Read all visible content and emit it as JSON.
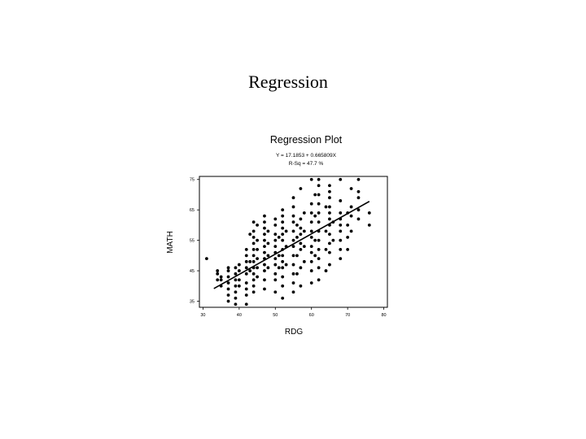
{
  "slide": {
    "title": "Regression"
  },
  "chart_data": {
    "type": "scatter",
    "title": "Regression Plot",
    "subtitle": [
      "Y = 17.1853 + 0.665809X",
      "R-Sq = 47.7 %"
    ],
    "xlabel": "RDG",
    "ylabel": "MATH",
    "xlim": [
      29,
      81
    ],
    "ylim": [
      33,
      76
    ],
    "xticks": [
      30,
      40,
      50,
      60,
      70,
      80
    ],
    "yticks": [
      35,
      45,
      55,
      65,
      75
    ],
    "grid": false,
    "regression_line": {
      "intercept": 17.1853,
      "slope": 0.665809,
      "x_range": [
        33,
        76
      ]
    },
    "points": [
      [
        31,
        49
      ],
      [
        34,
        42
      ],
      [
        34,
        44
      ],
      [
        34,
        45
      ],
      [
        35,
        40
      ],
      [
        35,
        42
      ],
      [
        35,
        43
      ],
      [
        37,
        35
      ],
      [
        37,
        37
      ],
      [
        37,
        39
      ],
      [
        37,
        41
      ],
      [
        37,
        43
      ],
      [
        37,
        45
      ],
      [
        37,
        46
      ],
      [
        39,
        34
      ],
      [
        39,
        36
      ],
      [
        39,
        38
      ],
      [
        39,
        40
      ],
      [
        39,
        42
      ],
      [
        39,
        44
      ],
      [
        39,
        46
      ],
      [
        40,
        40
      ],
      [
        40,
        42
      ],
      [
        40,
        45
      ],
      [
        40,
        47
      ],
      [
        42,
        34
      ],
      [
        42,
        37
      ],
      [
        42,
        39
      ],
      [
        42,
        41
      ],
      [
        42,
        44
      ],
      [
        42,
        46
      ],
      [
        42,
        48
      ],
      [
        42,
        50
      ],
      [
        42,
        52
      ],
      [
        43,
        45
      ],
      [
        43,
        48
      ],
      [
        43,
        57
      ],
      [
        44,
        38
      ],
      [
        44,
        40
      ],
      [
        44,
        42
      ],
      [
        44,
        44
      ],
      [
        44,
        46
      ],
      [
        44,
        48
      ],
      [
        44,
        50
      ],
      [
        44,
        52
      ],
      [
        44,
        54
      ],
      [
        44,
        56
      ],
      [
        44,
        58
      ],
      [
        44,
        61
      ],
      [
        45,
        43
      ],
      [
        45,
        46
      ],
      [
        45,
        49
      ],
      [
        45,
        52
      ],
      [
        45,
        55
      ],
      [
        45,
        60
      ],
      [
        47,
        39
      ],
      [
        47,
        42
      ],
      [
        47,
        45
      ],
      [
        47,
        47
      ],
      [
        47,
        49
      ],
      [
        47,
        51
      ],
      [
        47,
        53
      ],
      [
        47,
        55
      ],
      [
        47,
        57
      ],
      [
        47,
        59
      ],
      [
        47,
        61
      ],
      [
        47,
        63
      ],
      [
        48,
        46
      ],
      [
        48,
        50
      ],
      [
        48,
        54
      ],
      [
        48,
        58
      ],
      [
        50,
        38
      ],
      [
        50,
        42
      ],
      [
        50,
        44
      ],
      [
        50,
        47
      ],
      [
        50,
        49
      ],
      [
        50,
        51
      ],
      [
        50,
        53
      ],
      [
        50,
        55
      ],
      [
        50,
        57
      ],
      [
        50,
        60
      ],
      [
        50,
        62
      ],
      [
        51,
        46
      ],
      [
        51,
        50
      ],
      [
        51,
        56
      ],
      [
        52,
        36
      ],
      [
        52,
        40
      ],
      [
        52,
        43
      ],
      [
        52,
        46
      ],
      [
        52,
        48
      ],
      [
        52,
        50
      ],
      [
        52,
        52
      ],
      [
        52,
        55
      ],
      [
        52,
        57
      ],
      [
        52,
        59
      ],
      [
        52,
        61
      ],
      [
        52,
        63
      ],
      [
        52,
        65
      ],
      [
        53,
        47
      ],
      [
        53,
        53
      ],
      [
        53,
        58
      ],
      [
        55,
        38
      ],
      [
        55,
        41
      ],
      [
        55,
        44
      ],
      [
        55,
        47
      ],
      [
        55,
        50
      ],
      [
        55,
        53
      ],
      [
        55,
        55
      ],
      [
        55,
        58
      ],
      [
        55,
        61
      ],
      [
        55,
        63
      ],
      [
        55,
        66
      ],
      [
        55,
        69
      ],
      [
        56,
        44
      ],
      [
        56,
        50
      ],
      [
        56,
        56
      ],
      [
        56,
        60
      ],
      [
        57,
        40
      ],
      [
        57,
        46
      ],
      [
        57,
        52
      ],
      [
        57,
        54
      ],
      [
        57,
        57
      ],
      [
        57,
        59
      ],
      [
        57,
        62
      ],
      [
        57,
        72
      ],
      [
        58,
        48
      ],
      [
        58,
        53
      ],
      [
        58,
        58
      ],
      [
        58,
        64
      ],
      [
        60,
        41
      ],
      [
        60,
        45
      ],
      [
        60,
        48
      ],
      [
        60,
        51
      ],
      [
        60,
        53
      ],
      [
        60,
        56
      ],
      [
        60,
        58
      ],
      [
        60,
        61
      ],
      [
        60,
        64
      ],
      [
        60,
        67
      ],
      [
        60,
        75
      ],
      [
        61,
        50
      ],
      [
        61,
        55
      ],
      [
        61,
        63
      ],
      [
        61,
        70
      ],
      [
        62,
        42
      ],
      [
        62,
        46
      ],
      [
        62,
        49
      ],
      [
        62,
        52
      ],
      [
        62,
        55
      ],
      [
        62,
        58
      ],
      [
        62,
        61
      ],
      [
        62,
        64
      ],
      [
        62,
        67
      ],
      [
        62,
        70
      ],
      [
        62,
        73
      ],
      [
        62,
        75
      ],
      [
        64,
        45
      ],
      [
        64,
        52
      ],
      [
        64,
        58
      ],
      [
        64,
        66
      ],
      [
        65,
        47
      ],
      [
        65,
        51
      ],
      [
        65,
        54
      ],
      [
        65,
        57
      ],
      [
        65,
        60
      ],
      [
        65,
        62
      ],
      [
        65,
        64
      ],
      [
        65,
        66
      ],
      [
        65,
        69
      ],
      [
        65,
        71
      ],
      [
        65,
        73
      ],
      [
        66,
        55
      ],
      [
        66,
        61
      ],
      [
        68,
        49
      ],
      [
        68,
        52
      ],
      [
        68,
        55
      ],
      [
        68,
        58
      ],
      [
        68,
        60
      ],
      [
        68,
        62
      ],
      [
        68,
        64
      ],
      [
        68,
        68
      ],
      [
        68,
        75
      ],
      [
        70,
        52
      ],
      [
        70,
        56
      ],
      [
        70,
        60
      ],
      [
        70,
        64
      ],
      [
        71,
        58
      ],
      [
        71,
        63
      ],
      [
        71,
        66
      ],
      [
        71,
        72
      ],
      [
        73,
        62
      ],
      [
        73,
        65
      ],
      [
        73,
        69
      ],
      [
        73,
        71
      ],
      [
        73,
        75
      ],
      [
        76,
        60
      ],
      [
        76,
        64
      ]
    ]
  }
}
